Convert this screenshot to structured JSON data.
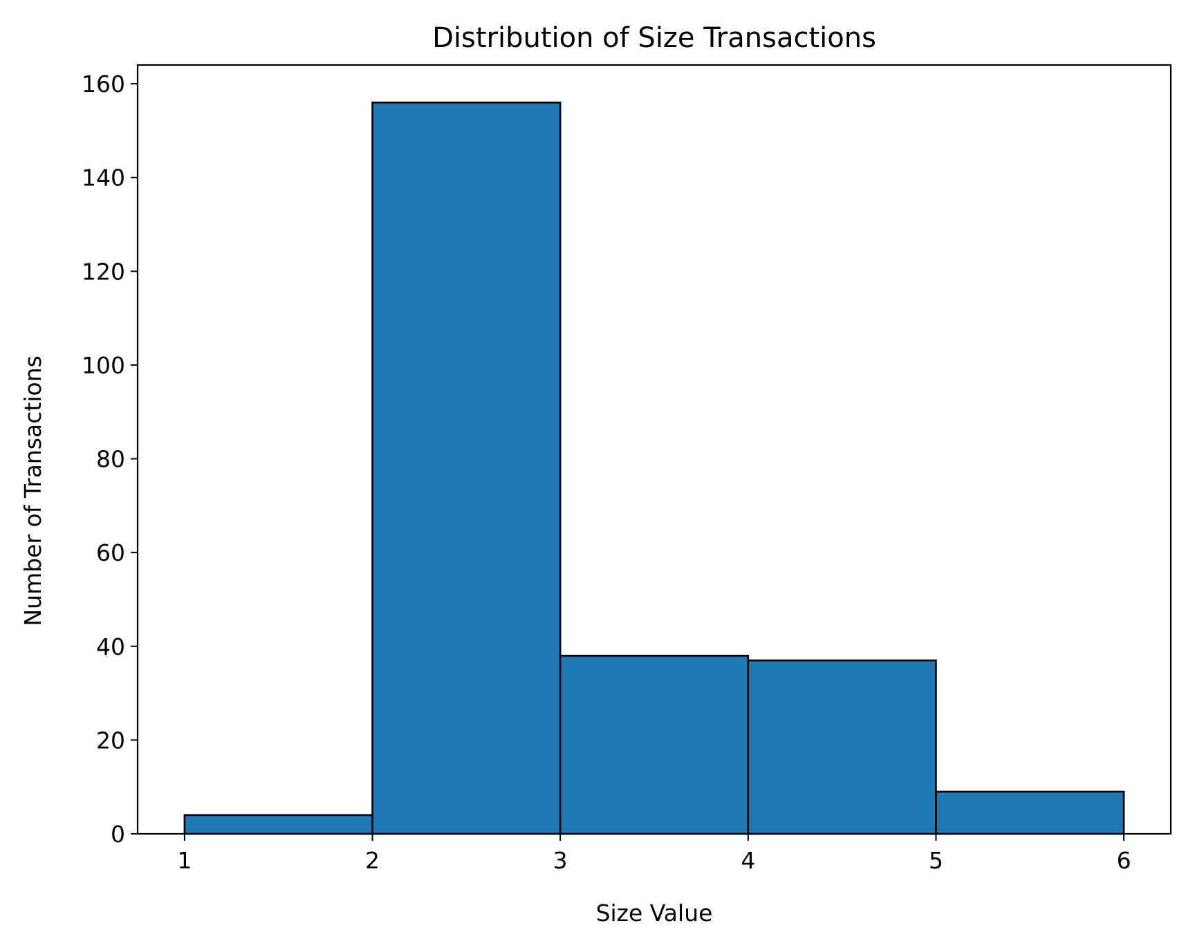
{
  "chart_data": {
    "type": "bar",
    "title": "Distribution of Size Transactions",
    "xlabel": "Size Value",
    "ylabel": "Number of Transactions",
    "bins": [
      {
        "start": 1,
        "end": 2,
        "count": 4
      },
      {
        "start": 2,
        "end": 3,
        "count": 156
      },
      {
        "start": 3,
        "end": 4,
        "count": 38
      },
      {
        "start": 4,
        "end": 5,
        "count": 37
      },
      {
        "start": 5,
        "end": 6,
        "count": 9
      }
    ],
    "xticks": [
      1,
      2,
      3,
      4,
      5,
      6
    ],
    "yticks": [
      0,
      20,
      40,
      60,
      80,
      100,
      120,
      140,
      160
    ],
    "xlim": [
      0.75,
      6.25
    ],
    "ylim": [
      0,
      164
    ],
    "grid": false,
    "legend": "none",
    "bar_color": "#1f77b4",
    "edge_color": "#000000"
  }
}
